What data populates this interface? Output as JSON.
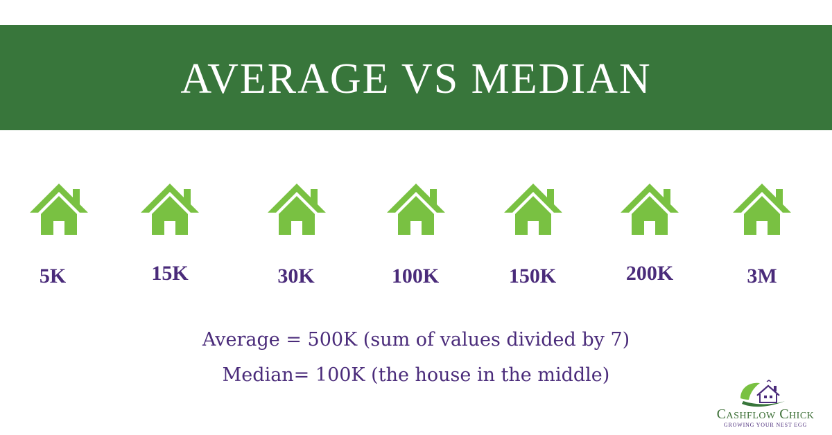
{
  "header": {
    "title": "AVERAGE VS MEDIAN"
  },
  "houses": [
    {
      "price": "5K",
      "icon": "house-icon"
    },
    {
      "price": "15K",
      "icon": "house-icon"
    },
    {
      "price": "30K",
      "icon": "house-icon"
    },
    {
      "price": "100K",
      "icon": "house-icon"
    },
    {
      "price": "150K",
      "icon": "house-icon"
    },
    {
      "price": "200K",
      "icon": "house-icon"
    },
    {
      "price": "3M",
      "icon": "house-icon"
    }
  ],
  "summary": {
    "average_line": "Average = 500K (sum of values divided by 7)",
    "median_line": "Median= 100K (the house in the middle)"
  },
  "logo": {
    "name": "Cashflow Chick",
    "tagline": "GROWING YOUR NEST EGG"
  },
  "colors": {
    "banner": "#38763b",
    "house_icon": "#79c142",
    "text_purple": "#4a2b7a"
  }
}
